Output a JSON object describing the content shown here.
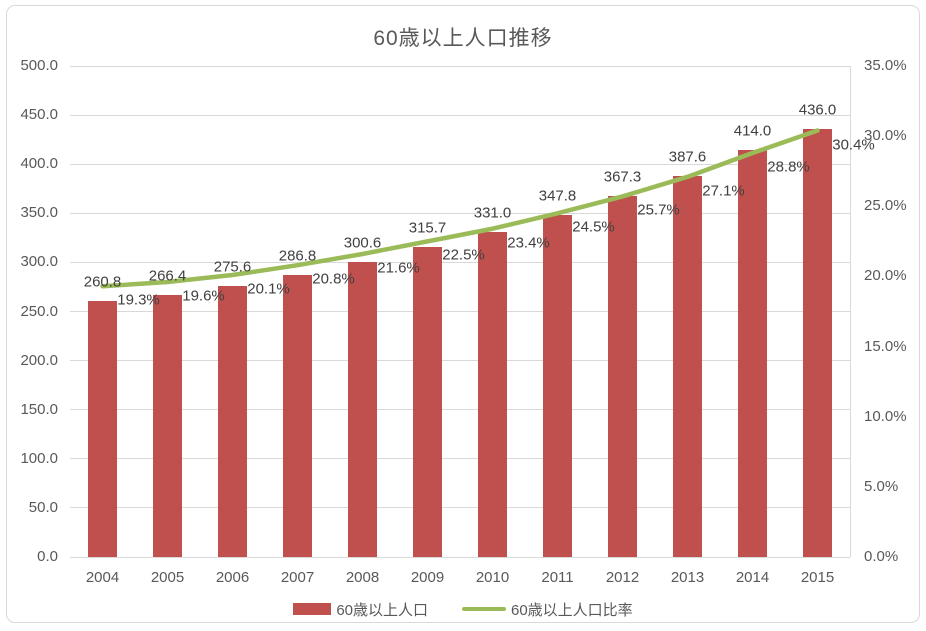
{
  "chart_data": {
    "type": "bar",
    "combo": [
      "bar",
      "line"
    ],
    "title": "60歳以上人口推移",
    "categories": [
      "2004",
      "2005",
      "2006",
      "2007",
      "2008",
      "2009",
      "2010",
      "2011",
      "2012",
      "2013",
      "2014",
      "2015"
    ],
    "series": [
      {
        "name": "60歳以上人口",
        "type": "bar",
        "axis": "left",
        "color": "#c0504d",
        "values": [
          260.8,
          266.4,
          275.6,
          286.8,
          300.6,
          315.7,
          331.0,
          347.8,
          367.3,
          387.6,
          414.0,
          436.0
        ]
      },
      {
        "name": "60歳以上人口比率",
        "type": "line",
        "axis": "right",
        "color": "#9bbb59",
        "suffix": "%",
        "values": [
          19.3,
          19.6,
          20.1,
          20.8,
          21.6,
          22.5,
          23.4,
          24.5,
          25.7,
          27.1,
          28.8,
          30.4
        ]
      }
    ],
    "left_axis": {
      "min": 0,
      "max": 500,
      "step": 50,
      "decimals": 1
    },
    "right_axis": {
      "min": 0,
      "max": 35,
      "step": 5,
      "decimals": 1,
      "suffix": "%"
    },
    "grid": true,
    "data_labels": true,
    "legend_position": "bottom"
  },
  "colors": {
    "bar": "#c0504d",
    "line": "#9bbb59",
    "gridline": "#d9d9d9",
    "axis_text": "#595959",
    "data_label_text": "#404040",
    "title_text": "#595959",
    "frame_border": "#d9d9d9",
    "background": "#ffffff"
  }
}
